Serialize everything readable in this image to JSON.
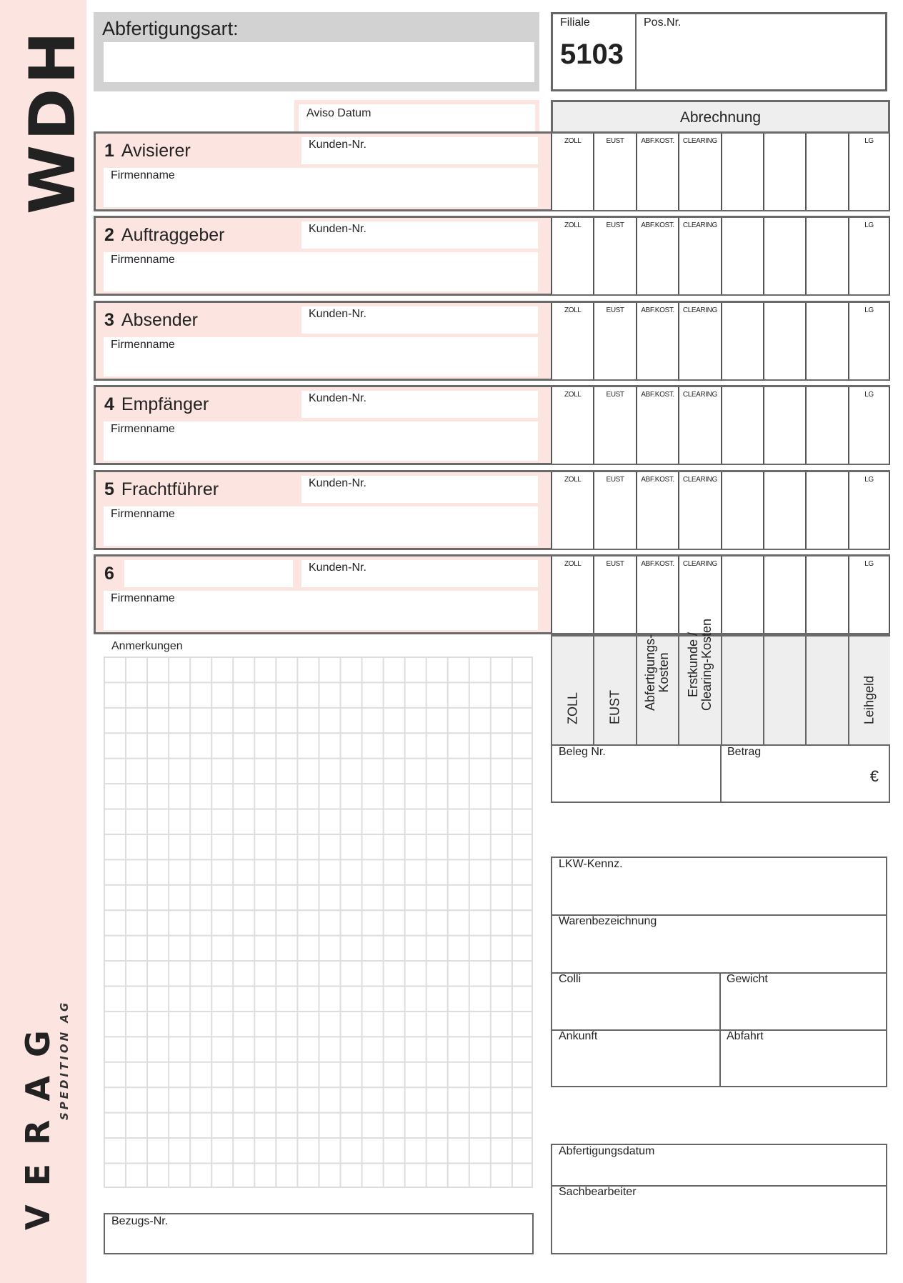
{
  "logo": {
    "code": "WDH",
    "brand": "VERAG",
    "brand_sub": "SPEDITION AG"
  },
  "header": {
    "abfertigungsart_label": "Abfertigungsart:",
    "filiale_label": "Filiale",
    "filiale_value": "5103",
    "posnr_label": "Pos.Nr.",
    "aviso_label": "Aviso Datum",
    "abrechnung_label": "Abrechnung"
  },
  "sections": [
    {
      "num": "1",
      "title": "Avisierer",
      "kunden": "Kunden-Nr.",
      "firma": "Firmenname"
    },
    {
      "num": "2",
      "title": "Auftraggeber",
      "kunden": "Kunden-Nr.",
      "firma": "Firmenname"
    },
    {
      "num": "3",
      "title": "Absender",
      "kunden": "Kunden-Nr.",
      "firma": "Firmenname"
    },
    {
      "num": "4",
      "title": "Empfänger",
      "kunden": "Kunden-Nr.",
      "firma": "Firmenname"
    },
    {
      "num": "5",
      "title": "Frachtführer",
      "kunden": "Kunden-Nr.",
      "firma": "Firmenname"
    },
    {
      "num": "6",
      "title": "",
      "kunden": "Kunden-Nr.",
      "firma": "Firmenname"
    }
  ],
  "abrechnung_columns": [
    "ZOLL",
    "EUST",
    "ABF.KOST.",
    "CLEARING",
    "",
    "",
    "",
    "LG"
  ],
  "abrechnung_headers": [
    "ZOLL",
    "EUST",
    "Abfertigungs-\nKosten",
    "Erstkunde /\nClearing-Kosten",
    "",
    "",
    "",
    "Leihgeld"
  ],
  "beleg_label": "Beleg Nr.",
  "betrag_label": "Betrag",
  "currency": "€",
  "anmerkungen_label": "Anmerkungen",
  "bezugs_label": "Bezugs-Nr.",
  "transport": {
    "lkw": "LKW-Kennz.",
    "ware": "Warenbezeichnung",
    "colli": "Colli",
    "gewicht": "Gewicht",
    "ankunft": "Ankunft",
    "abfahrt": "Abfahrt"
  },
  "footer": {
    "datum": "Abfertigungsdatum",
    "sachbearbeiter": "Sachbearbeiter"
  }
}
